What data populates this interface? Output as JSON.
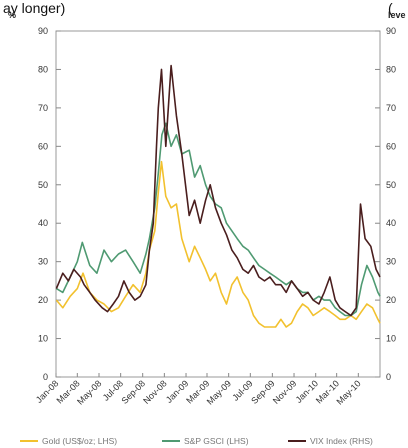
{
  "header": {
    "left_text": "ay longer) ",
    "right_text": "("
  },
  "chart_data": {
    "type": "line",
    "title": "",
    "left_axis": {
      "unit": "%",
      "ylim": [
        0,
        90
      ],
      "ticks": [
        0,
        10,
        20,
        30,
        40,
        50,
        60,
        70,
        80,
        90
      ]
    },
    "right_axis": {
      "unit": "leve",
      "ylim": [
        0,
        90
      ],
      "ticks": [
        0,
        10,
        20,
        30,
        40,
        50,
        60,
        70,
        80,
        90
      ]
    },
    "x_range": [
      "2008-01",
      "2010-07"
    ],
    "x_ticks": [
      "Jan-08",
      "Mar-08",
      "May-08",
      "Jul-08",
      "Sep-08",
      "Nov-08",
      "Jan-09",
      "Mar-09",
      "May-09",
      "Jul-09",
      "Sep-09",
      "Nov-09",
      "Jan-10",
      "Mar-10",
      "May-10"
    ],
    "grid": false,
    "legend_position": "bottom",
    "series": [
      {
        "name": "Gold (US$/oz; LHS)",
        "axis": "left",
        "color": "#f2c12e",
        "points": [
          [
            "2008-01-02",
            20
          ],
          [
            "2008-01-20",
            18
          ],
          [
            "2008-02-10",
            21
          ],
          [
            "2008-03-01",
            23
          ],
          [
            "2008-03-17",
            27
          ],
          [
            "2008-04-05",
            22
          ],
          [
            "2008-04-25",
            20
          ],
          [
            "2008-05-15",
            19
          ],
          [
            "2008-06-05",
            17
          ],
          [
            "2008-06-25",
            18
          ],
          [
            "2008-07-15",
            21
          ],
          [
            "2008-08-05",
            24
          ],
          [
            "2008-08-25",
            22
          ],
          [
            "2008-09-10",
            27
          ],
          [
            "2008-09-20",
            33
          ],
          [
            "2008-10-05",
            38
          ],
          [
            "2008-10-15",
            48
          ],
          [
            "2008-10-24",
            56
          ],
          [
            "2008-11-05",
            47
          ],
          [
            "2008-11-20",
            44
          ],
          [
            "2008-12-05",
            45
          ],
          [
            "2008-12-20",
            36
          ],
          [
            "2009-01-10",
            30
          ],
          [
            "2009-01-25",
            34
          ],
          [
            "2009-02-10",
            31
          ],
          [
            "2009-02-25",
            28
          ],
          [
            "2009-03-10",
            25
          ],
          [
            "2009-03-25",
            27
          ],
          [
            "2009-04-10",
            22
          ],
          [
            "2009-04-25",
            19
          ],
          [
            "2009-05-10",
            24
          ],
          [
            "2009-05-25",
            26
          ],
          [
            "2009-06-10",
            22
          ],
          [
            "2009-06-25",
            20
          ],
          [
            "2009-07-10",
            16
          ],
          [
            "2009-07-25",
            14
          ],
          [
            "2009-08-10",
            13
          ],
          [
            "2009-08-25",
            13
          ],
          [
            "2009-09-10",
            13
          ],
          [
            "2009-09-25",
            15
          ],
          [
            "2009-10-10",
            13
          ],
          [
            "2009-10-25",
            14
          ],
          [
            "2009-11-10",
            17
          ],
          [
            "2009-11-25",
            19
          ],
          [
            "2009-12-10",
            18
          ],
          [
            "2009-12-25",
            16
          ],
          [
            "2010-01-10",
            17
          ],
          [
            "2010-01-25",
            18
          ],
          [
            "2010-02-10",
            17
          ],
          [
            "2010-02-25",
            16
          ],
          [
            "2010-03-10",
            15
          ],
          [
            "2010-03-25",
            15
          ],
          [
            "2010-04-10",
            16
          ],
          [
            "2010-04-25",
            15
          ],
          [
            "2010-05-10",
            17
          ],
          [
            "2010-05-25",
            19
          ],
          [
            "2010-06-10",
            18
          ],
          [
            "2010-06-25",
            15
          ],
          [
            "2010-07-01",
            14
          ]
        ]
      },
      {
        "name": "S&P GSCI (LHS)",
        "axis": "left",
        "color": "#4f9a72",
        "points": [
          [
            "2008-01-02",
            23
          ],
          [
            "2008-01-20",
            22
          ],
          [
            "2008-02-10",
            26
          ],
          [
            "2008-03-01",
            30
          ],
          [
            "2008-03-15",
            35
          ],
          [
            "2008-04-05",
            29
          ],
          [
            "2008-04-25",
            27
          ],
          [
            "2008-05-15",
            33
          ],
          [
            "2008-06-05",
            30
          ],
          [
            "2008-06-25",
            32
          ],
          [
            "2008-07-15",
            33
          ],
          [
            "2008-08-05",
            30
          ],
          [
            "2008-08-25",
            27
          ],
          [
            "2008-09-10",
            32
          ],
          [
            "2008-09-20",
            36
          ],
          [
            "2008-10-05",
            44
          ],
          [
            "2008-10-15",
            53
          ],
          [
            "2008-10-25",
            63
          ],
          [
            "2008-11-05",
            66
          ],
          [
            "2008-11-20",
            60
          ],
          [
            "2008-12-05",
            63
          ],
          [
            "2008-12-20",
            58
          ],
          [
            "2009-01-10",
            59
          ],
          [
            "2009-01-25",
            52
          ],
          [
            "2009-02-10",
            55
          ],
          [
            "2009-02-25",
            50
          ],
          [
            "2009-03-10",
            47
          ],
          [
            "2009-03-25",
            45
          ],
          [
            "2009-04-10",
            44
          ],
          [
            "2009-04-25",
            40
          ],
          [
            "2009-05-10",
            38
          ],
          [
            "2009-05-25",
            36
          ],
          [
            "2009-06-10",
            34
          ],
          [
            "2009-06-25",
            33
          ],
          [
            "2009-07-10",
            31
          ],
          [
            "2009-07-25",
            29
          ],
          [
            "2009-08-10",
            28
          ],
          [
            "2009-08-25",
            27
          ],
          [
            "2009-09-10",
            26
          ],
          [
            "2009-09-25",
            25
          ],
          [
            "2009-10-10",
            24
          ],
          [
            "2009-10-25",
            25
          ],
          [
            "2009-11-10",
            23
          ],
          [
            "2009-11-25",
            22
          ],
          [
            "2009-12-10",
            22
          ],
          [
            "2009-12-25",
            20
          ],
          [
            "2010-01-10",
            21
          ],
          [
            "2010-01-25",
            20
          ],
          [
            "2010-02-10",
            20
          ],
          [
            "2010-02-25",
            18
          ],
          [
            "2010-03-10",
            17
          ],
          [
            "2010-03-25",
            16
          ],
          [
            "2010-04-10",
            16
          ],
          [
            "2010-04-25",
            17
          ],
          [
            "2010-05-10",
            24
          ],
          [
            "2010-05-25",
            29
          ],
          [
            "2010-06-10",
            26
          ],
          [
            "2010-06-25",
            22
          ],
          [
            "2010-07-01",
            21
          ]
        ]
      },
      {
        "name": "VIX Index (RHS)",
        "axis": "right",
        "color": "#4a1e1e",
        "points": [
          [
            "2008-01-02",
            23
          ],
          [
            "2008-01-20",
            27
          ],
          [
            "2008-02-05",
            25
          ],
          [
            "2008-02-20",
            28
          ],
          [
            "2008-03-10",
            26
          ],
          [
            "2008-03-20",
            24
          ],
          [
            "2008-04-05",
            22
          ],
          [
            "2008-04-20",
            20
          ],
          [
            "2008-05-10",
            18
          ],
          [
            "2008-05-25",
            17
          ],
          [
            "2008-06-10",
            19
          ],
          [
            "2008-06-25",
            21
          ],
          [
            "2008-07-10",
            25
          ],
          [
            "2008-07-25",
            22
          ],
          [
            "2008-08-10",
            20
          ],
          [
            "2008-08-25",
            21
          ],
          [
            "2008-09-10",
            24
          ],
          [
            "2008-09-20",
            33
          ],
          [
            "2008-10-01",
            40
          ],
          [
            "2008-10-10",
            60
          ],
          [
            "2008-10-15",
            70
          ],
          [
            "2008-10-24",
            80
          ],
          [
            "2008-11-05",
            60
          ],
          [
            "2008-11-20",
            81
          ],
          [
            "2008-12-05",
            68
          ],
          [
            "2008-12-20",
            58
          ],
          [
            "2009-01-10",
            42
          ],
          [
            "2009-01-25",
            46
          ],
          [
            "2009-02-10",
            40
          ],
          [
            "2009-02-25",
            46
          ],
          [
            "2009-03-10",
            50
          ],
          [
            "2009-03-25",
            44
          ],
          [
            "2009-04-10",
            40
          ],
          [
            "2009-04-25",
            37
          ],
          [
            "2009-05-10",
            33
          ],
          [
            "2009-05-25",
            31
          ],
          [
            "2009-06-10",
            28
          ],
          [
            "2009-06-25",
            27
          ],
          [
            "2009-07-10",
            29
          ],
          [
            "2009-07-25",
            26
          ],
          [
            "2009-08-10",
            25
          ],
          [
            "2009-08-25",
            26
          ],
          [
            "2009-09-10",
            24
          ],
          [
            "2009-09-25",
            24
          ],
          [
            "2009-10-10",
            22
          ],
          [
            "2009-10-25",
            25
          ],
          [
            "2009-11-10",
            23
          ],
          [
            "2009-11-25",
            21
          ],
          [
            "2009-12-10",
            22
          ],
          [
            "2009-12-25",
            20
          ],
          [
            "2010-01-10",
            19
          ],
          [
            "2010-01-25",
            22
          ],
          [
            "2010-02-10",
            26
          ],
          [
            "2010-02-25",
            20
          ],
          [
            "2010-03-10",
            18
          ],
          [
            "2010-03-25",
            17
          ],
          [
            "2010-04-10",
            16
          ],
          [
            "2010-04-25",
            18
          ],
          [
            "2010-05-07",
            45
          ],
          [
            "2010-05-20",
            36
          ],
          [
            "2010-06-05",
            34
          ],
          [
            "2010-06-20",
            28
          ],
          [
            "2010-07-01",
            26
          ]
        ]
      }
    ]
  }
}
